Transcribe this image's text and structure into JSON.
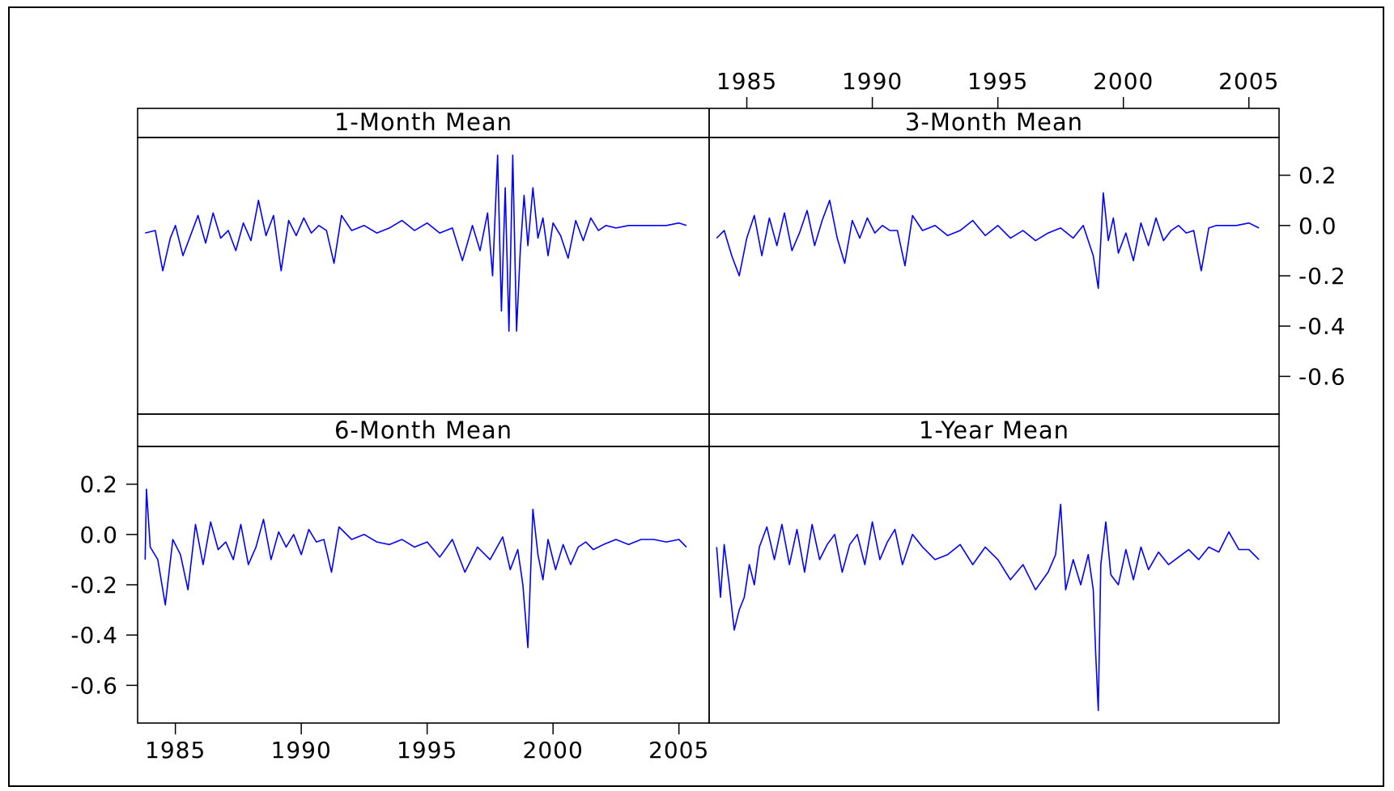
{
  "chart_data": {
    "type": "line",
    "layout": "2x2 trellis",
    "x_axis": {
      "range": [
        1983.5,
        2006.2
      ],
      "ticks": [
        1985,
        1990,
        1995,
        2000,
        2005
      ],
      "tick_labels": [
        "1985",
        "1990",
        "1995",
        "2000",
        "2005"
      ]
    },
    "y_axis": {
      "range": [
        -0.75,
        0.35
      ],
      "ticks": [
        0.2,
        0.0,
        -0.2,
        -0.4,
        -0.6
      ],
      "tick_labels": [
        "0.2",
        "0.0",
        "-0.2",
        "-0.4",
        "-0.6"
      ]
    },
    "grid": false,
    "line_color": "#0000ff",
    "panels": [
      {
        "title": "1-Month Mean",
        "x": [
          1983.8,
          1984.2,
          1984.5,
          1984.8,
          1985.0,
          1985.3,
          1985.6,
          1985.9,
          1986.2,
          1986.5,
          1986.8,
          1987.1,
          1987.4,
          1987.7,
          1988.0,
          1988.3,
          1988.6,
          1988.9,
          1989.2,
          1989.5,
          1989.8,
          1990.1,
          1990.4,
          1990.7,
          1991.0,
          1991.3,
          1991.6,
          1992.0,
          1992.5,
          1993.0,
          1993.5,
          1994.0,
          1994.5,
          1995.0,
          1995.5,
          1996.0,
          1996.4,
          1996.8,
          1997.1,
          1997.4,
          1997.6,
          1997.8,
          1997.95,
          1998.1,
          1998.25,
          1998.4,
          1998.55,
          1998.7,
          1998.85,
          1999.0,
          1999.2,
          1999.4,
          1999.6,
          1999.8,
          2000.0,
          2000.3,
          2000.6,
          2000.9,
          2001.2,
          2001.5,
          2001.8,
          2002.1,
          2002.5,
          2003.0,
          2003.5,
          2004.0,
          2004.5,
          2005.0,
          2005.3
        ],
        "y": [
          -0.03,
          -0.02,
          -0.18,
          -0.05,
          0.0,
          -0.12,
          -0.04,
          0.04,
          -0.07,
          0.05,
          -0.05,
          -0.02,
          -0.1,
          0.01,
          -0.06,
          0.1,
          -0.04,
          0.04,
          -0.18,
          0.02,
          -0.04,
          0.03,
          -0.03,
          0.0,
          -0.02,
          -0.15,
          0.04,
          -0.02,
          0.0,
          -0.03,
          -0.01,
          0.02,
          -0.02,
          0.01,
          -0.03,
          -0.01,
          -0.14,
          0.0,
          -0.1,
          0.05,
          -0.2,
          0.28,
          -0.34,
          0.15,
          -0.42,
          0.28,
          -0.42,
          -0.1,
          0.12,
          -0.08,
          0.15,
          -0.05,
          0.03,
          -0.12,
          0.01,
          -0.04,
          -0.13,
          0.02,
          -0.06,
          0.03,
          -0.02,
          0.0,
          -0.01,
          0.0,
          0.0,
          0.0,
          0.0,
          0.01,
          0.0
        ]
      },
      {
        "title": "3-Month Mean",
        "x": [
          1983.8,
          1984.1,
          1984.4,
          1984.7,
          1985.0,
          1985.3,
          1985.6,
          1985.9,
          1986.2,
          1986.5,
          1986.8,
          1987.1,
          1987.4,
          1987.7,
          1988.0,
          1988.3,
          1988.6,
          1988.9,
          1989.2,
          1989.5,
          1989.8,
          1990.1,
          1990.4,
          1990.7,
          1991.0,
          1991.3,
          1991.6,
          1992.0,
          1992.5,
          1993.0,
          1993.5,
          1994.0,
          1994.5,
          1995.0,
          1995.5,
          1996.0,
          1996.5,
          1997.0,
          1997.5,
          1998.0,
          1998.4,
          1998.8,
          1999.0,
          1999.2,
          1999.4,
          1999.6,
          1999.8,
          2000.1,
          2000.4,
          2000.7,
          2001.0,
          2001.3,
          2001.6,
          2001.9,
          2002.2,
          2002.5,
          2002.8,
          2003.1,
          2003.4,
          2003.7,
          2004.0,
          2004.5,
          2005.0,
          2005.4
        ],
        "y": [
          -0.05,
          -0.02,
          -0.12,
          -0.2,
          -0.05,
          0.04,
          -0.12,
          0.03,
          -0.08,
          0.05,
          -0.1,
          -0.03,
          0.06,
          -0.08,
          0.02,
          0.1,
          -0.05,
          -0.15,
          0.02,
          -0.05,
          0.03,
          -0.03,
          0.0,
          -0.02,
          -0.02,
          -0.16,
          0.04,
          -0.02,
          0.0,
          -0.04,
          -0.02,
          0.02,
          -0.04,
          0.0,
          -0.05,
          -0.02,
          -0.06,
          -0.03,
          -0.01,
          -0.05,
          0.0,
          -0.12,
          -0.25,
          0.13,
          -0.06,
          0.03,
          -0.11,
          -0.03,
          -0.14,
          0.01,
          -0.08,
          0.03,
          -0.06,
          -0.02,
          0.0,
          -0.03,
          -0.02,
          -0.18,
          -0.01,
          0.0,
          0.0,
          0.0,
          0.01,
          -0.01
        ]
      },
      {
        "title": "6-Month Mean",
        "x": [
          1983.8,
          1983.85,
          1984.0,
          1984.3,
          1984.6,
          1984.9,
          1985.2,
          1985.5,
          1985.8,
          1986.1,
          1986.4,
          1986.7,
          1987.0,
          1987.3,
          1987.6,
          1987.9,
          1988.2,
          1988.5,
          1988.8,
          1989.1,
          1989.4,
          1989.7,
          1990.0,
          1990.3,
          1990.6,
          1990.9,
          1991.2,
          1991.5,
          1992.0,
          1992.5,
          1993.0,
          1993.5,
          1994.0,
          1994.5,
          1995.0,
          1995.5,
          1996.0,
          1996.5,
          1997.0,
          1997.5,
          1998.0,
          1998.3,
          1998.6,
          1998.8,
          1999.0,
          1999.2,
          1999.4,
          1999.6,
          1999.8,
          2000.1,
          2000.4,
          2000.7,
          2001.0,
          2001.3,
          2001.6,
          2002.0,
          2002.5,
          2003.0,
          2003.5,
          2004.0,
          2004.5,
          2005.0,
          2005.3
        ],
        "y": [
          -0.1,
          0.18,
          -0.05,
          -0.1,
          -0.28,
          -0.02,
          -0.08,
          -0.22,
          0.04,
          -0.12,
          0.05,
          -0.06,
          -0.03,
          -0.1,
          0.04,
          -0.12,
          -0.05,
          0.06,
          -0.1,
          0.01,
          -0.05,
          0.0,
          -0.08,
          0.02,
          -0.03,
          -0.02,
          -0.15,
          0.03,
          -0.02,
          0.0,
          -0.03,
          -0.04,
          -0.02,
          -0.05,
          -0.03,
          -0.09,
          -0.02,
          -0.15,
          -0.05,
          -0.1,
          -0.01,
          -0.14,
          -0.06,
          -0.2,
          -0.45,
          0.1,
          -0.08,
          -0.18,
          -0.02,
          -0.14,
          -0.04,
          -0.12,
          -0.05,
          -0.03,
          -0.06,
          -0.04,
          -0.02,
          -0.04,
          -0.02,
          -0.02,
          -0.03,
          -0.02,
          -0.05
        ]
      },
      {
        "title": "1-Year Mean",
        "x": [
          1983.8,
          1983.95,
          1984.1,
          1984.3,
          1984.5,
          1984.7,
          1984.9,
          1985.1,
          1985.3,
          1985.5,
          1985.8,
          1986.1,
          1986.4,
          1986.7,
          1987.0,
          1987.3,
          1987.6,
          1987.9,
          1988.2,
          1988.5,
          1988.8,
          1989.1,
          1989.4,
          1989.7,
          1990.0,
          1990.3,
          1990.6,
          1990.9,
          1991.2,
          1991.6,
          1992.0,
          1992.5,
          1993.0,
          1993.5,
          1994.0,
          1994.5,
          1995.0,
          1995.5,
          1996.0,
          1996.5,
          1997.0,
          1997.3,
          1997.5,
          1997.7,
          1998.0,
          1998.3,
          1998.6,
          1998.8,
          1998.9,
          1999.0,
          1999.1,
          1999.3,
          1999.5,
          1999.8,
          2000.1,
          2000.4,
          2000.7,
          2001.0,
          2001.4,
          2001.8,
          2002.2,
          2002.6,
          2003.0,
          2003.4,
          2003.8,
          2004.2,
          2004.6,
          2005.0,
          2005.4
        ],
        "y": [
          -0.05,
          -0.25,
          -0.04,
          -0.2,
          -0.38,
          -0.3,
          -0.25,
          -0.12,
          -0.2,
          -0.05,
          0.03,
          -0.1,
          0.04,
          -0.12,
          0.02,
          -0.15,
          0.04,
          -0.1,
          -0.04,
          0.0,
          -0.15,
          -0.04,
          0.0,
          -0.12,
          0.05,
          -0.1,
          -0.03,
          0.02,
          -0.12,
          0.0,
          -0.05,
          -0.1,
          -0.08,
          -0.04,
          -0.12,
          -0.05,
          -0.1,
          -0.18,
          -0.12,
          -0.22,
          -0.15,
          -0.08,
          0.12,
          -0.22,
          -0.1,
          -0.2,
          -0.08,
          -0.22,
          -0.48,
          -0.7,
          -0.12,
          0.05,
          -0.16,
          -0.2,
          -0.06,
          -0.18,
          -0.05,
          -0.14,
          -0.07,
          -0.12,
          -0.09,
          -0.06,
          -0.1,
          -0.05,
          -0.07,
          0.01,
          -0.06,
          -0.06,
          -0.1
        ]
      }
    ]
  }
}
